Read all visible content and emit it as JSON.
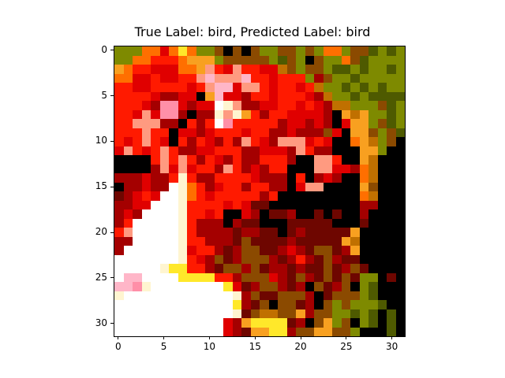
{
  "figure": {
    "title": "True Label: bird, Predicted Label: bird",
    "axis_color": "#000000",
    "background": "#ffffff"
  },
  "image": {
    "resolution": [
      32,
      32
    ],
    "palette": {
      "r": "#ff1a00",
      "R": "#e00000",
      "d": "#a40000",
      "D": "#6e0600",
      "k": "#000000",
      "o": "#ff6f00",
      "O": "#f8a020",
      "y": "#ffe82a",
      "w": "#ffffff",
      "c": "#fff5d0",
      "p": "#ffb6c8",
      "P": "#ff8fa8",
      "s": "#ff9a80",
      "g": "#7e8a00",
      "G": "#4e5a00",
      "b": "#8b4a00",
      "m": "#c07000"
    },
    "pixel_rows": [
      "gggooRoyoggbkbkbggbbgbgoogbbGgGg",
      "ggoorrroOOOgbbbbbgGbgkbggobGgggg",
      "OorrRRRooOsrRsrrRRmbgbbgGGgGggGg",
      "ooRRrRRrrspsssprrRrrrgdbggGggggg",
      "rrRRrrrrRrsppRssrRrrRrmggGgGgGgg",
      "rrrrRddRRkOpRRdrrRrrrRdmggGgGGGG",
      "rrrRdPPRdRRwcsddRRrrRrRdmmgggbGg",
      "rrRsRPPdkddcscOrdrrRRRRdkOmOggGg",
      "rrsssddkrdrwPrrrrrdRRdRdkROOgbGg",
      "rrrsrrkRRdRrrrRrrddRdddbRkOObgbG",
      "rRrsrRkrdrRdrdsrRdsssRrRkkoOmgbk",
      "RsrRrsrddRRrrrddRRRdsrddkkkOOgkk",
      "kkkkrsrsrdrRdrddrrrdkkssrkkOmkkk",
      "kkkkdsRsRrrdsrdRdrrkkkssRRdomkkk",
      "dddRddrcrddrrrrRdddkrkdRdkkomkkk",
      "kddRddwcordRrrdrrddkRsskkkkObkkk",
      "DdRrRwwcorRrrrrrdrkkkkkkkkkomkkk",
      "ddRRwwwcrrrrRrRDDkkkkkkkkkkddkkk",
      "dRdwwwwcrrRrkkRdkDDdkkDkDkkdkkkk",
      "drwwwwwcrdddkdDDkkkDDDDDkkkDkkkk",
      "rswwwwwcrddddDddDDkDdDDDDDOkkkkk",
      "ddwwwwwcrrdddDbDDDDdDDDDDOmkkkkk",
      "dwwwwwwcRrrdDdbbDDdRdDbbDdOkkkkk",
      "wwwwwwwcrRdbDdbbbdDdrdDbdDDkkkkk",
      "wwwwwcyyrrdDbbdbDddDdDDbDdbDkkkk",
      "wppwwwwyyyyrrdbbbRdDbdDbDbDggkDk",
      "ppPcwwwwwwwwyRDdbbdDdkbDdbkgGkkk",
      "cwwwwwwwwwwwwcdbDDbbbdkDbbbgGkkk",
      "wwwwwwwwwwwwwydDbkbbDdkbgbgggGkk",
      "wwwwwwwwwwwwwcDbmmbbOdbbggGgGkGk",
      "wwwwwwwwwwwwRdOyyyyDdkbOgbkgGkGk",
      "wwwwwwwwwwwwRdDOOyydbbOObbgkkkGk"
    ]
  },
  "axes": {
    "x_ticks": [
      "0",
      "5",
      "10",
      "15",
      "20",
      "25",
      "30"
    ],
    "y_ticks": [
      "0",
      "5",
      "10",
      "15",
      "20",
      "25",
      "30"
    ]
  }
}
